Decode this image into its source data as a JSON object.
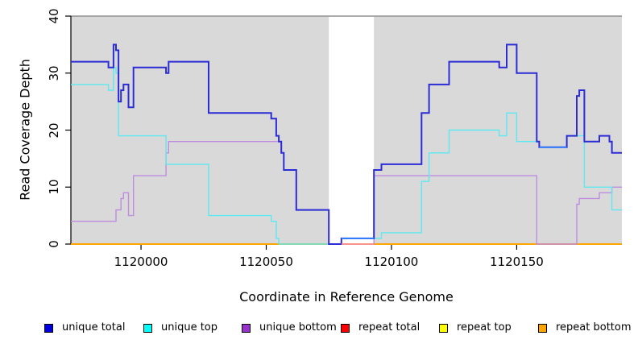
{
  "figure": {
    "xlabel": "Coordinate in Reference Genome",
    "ylabel": "Read Coverage Depth"
  },
  "chart_data": {
    "type": "line",
    "subtype": "step",
    "title": "",
    "xlabel": "Coordinate in Reference Genome",
    "ylabel": "Read Coverage Depth",
    "xlim": [
      1119972,
      1120192
    ],
    "ylim": [
      0,
      40
    ],
    "x_ticks": [
      1120000,
      1120050,
      1120100,
      1120150
    ],
    "y_ticks": [
      0,
      10,
      20,
      30,
      40
    ],
    "grid": false,
    "plot_bg_color": "#d9d9d9",
    "masked_region": {
      "x1": 1120075,
      "x2": 1120093,
      "color": "#ffffff"
    },
    "legend_position": "bottom",
    "draw_order": [
      3,
      4,
      5,
      2,
      1,
      0
    ],
    "series": [
      {
        "name": "unique total",
        "color": "#2c2cd6",
        "legend_color": "#0000e0",
        "width": 2,
        "points": [
          [
            1119972,
            32
          ],
          [
            1119987,
            31
          ],
          [
            1119989,
            35
          ],
          [
            1119990,
            34
          ],
          [
            1119991,
            25
          ],
          [
            1119992,
            27
          ],
          [
            1119993,
            28
          ],
          [
            1119995,
            24
          ],
          [
            1119997,
            31
          ],
          [
            1120010,
            30
          ],
          [
            1120011,
            32
          ],
          [
            1120027,
            23
          ],
          [
            1120052,
            22
          ],
          [
            1120054,
            19
          ],
          [
            1120055,
            18
          ],
          [
            1120056,
            16
          ],
          [
            1120057,
            13
          ],
          [
            1120062,
            6
          ],
          [
            1120075,
            0
          ],
          [
            1120080,
            1
          ],
          [
            1120093,
            13
          ],
          [
            1120096,
            14
          ],
          [
            1120112,
            23
          ],
          [
            1120115,
            28
          ],
          [
            1120123,
            32
          ],
          [
            1120143,
            31
          ],
          [
            1120146,
            35
          ],
          [
            1120150,
            30
          ],
          [
            1120158,
            18
          ],
          [
            1120159,
            17
          ],
          [
            1120170,
            19
          ],
          [
            1120174,
            26
          ],
          [
            1120175,
            27
          ],
          [
            1120177,
            18
          ],
          [
            1120183,
            19
          ],
          [
            1120187,
            18
          ],
          [
            1120188,
            16
          ]
        ]
      },
      {
        "name": "unique top",
        "color": "#5ce9f0",
        "legend_color": "#00ffff",
        "width": 1.4,
        "points": [
          [
            1119972,
            28
          ],
          [
            1119987,
            27
          ],
          [
            1119989,
            31
          ],
          [
            1119990,
            30
          ],
          [
            1119991,
            19
          ],
          [
            1120010,
            14
          ],
          [
            1120027,
            5
          ],
          [
            1120052,
            4
          ],
          [
            1120054,
            1
          ],
          [
            1120055,
            0
          ],
          [
            1120080,
            1
          ],
          [
            1120096,
            2
          ],
          [
            1120112,
            11
          ],
          [
            1120115,
            16
          ],
          [
            1120123,
            20
          ],
          [
            1120143,
            19
          ],
          [
            1120146,
            23
          ],
          [
            1120150,
            18
          ],
          [
            1120159,
            17
          ],
          [
            1120170,
            19
          ],
          [
            1120177,
            10
          ],
          [
            1120188,
            6
          ]
        ]
      },
      {
        "name": "unique bottom",
        "color": "#bf8ce0",
        "legend_color": "#9932cc",
        "width": 1.4,
        "points": [
          [
            1119972,
            4
          ],
          [
            1119990,
            6
          ],
          [
            1119992,
            8
          ],
          [
            1119993,
            9
          ],
          [
            1119995,
            5
          ],
          [
            1119997,
            12
          ],
          [
            1120010,
            16
          ],
          [
            1120011,
            18
          ],
          [
            1120056,
            16
          ],
          [
            1120057,
            13
          ],
          [
            1120062,
            6
          ],
          [
            1120075,
            0
          ],
          [
            1120093,
            12
          ],
          [
            1120158,
            0
          ],
          [
            1120174,
            7
          ],
          [
            1120175,
            8
          ],
          [
            1120183,
            9
          ],
          [
            1120188,
            10
          ]
        ]
      },
      {
        "name": "repeat total",
        "color": "#ff3333",
        "legend_color": "#ff0000",
        "width": 1.4,
        "points": [
          [
            1119972,
            0
          ]
        ]
      },
      {
        "name": "repeat top",
        "color": "#ffff00",
        "legend_color": "#ffff00",
        "width": 1.4,
        "points": [
          [
            1119972,
            0
          ]
        ]
      },
      {
        "name": "repeat bottom",
        "color": "#ffa500",
        "legend_color": "#ffa500",
        "width": 2,
        "points": [
          [
            1119972,
            0
          ]
        ]
      }
    ],
    "overlay_segments": [
      {
        "x1": 1120080,
        "x2": 1120093,
        "value": 0,
        "color": "#ff8f98",
        "width": 1.6
      },
      {
        "x1": 1120080,
        "x2": 1120093,
        "value": 1,
        "color": "#2e80ff",
        "width": 1.8
      },
      {
        "x1": 1120159,
        "x2": 1120170,
        "value": 17,
        "color": "#2e80ff",
        "width": 1.8
      }
    ]
  }
}
